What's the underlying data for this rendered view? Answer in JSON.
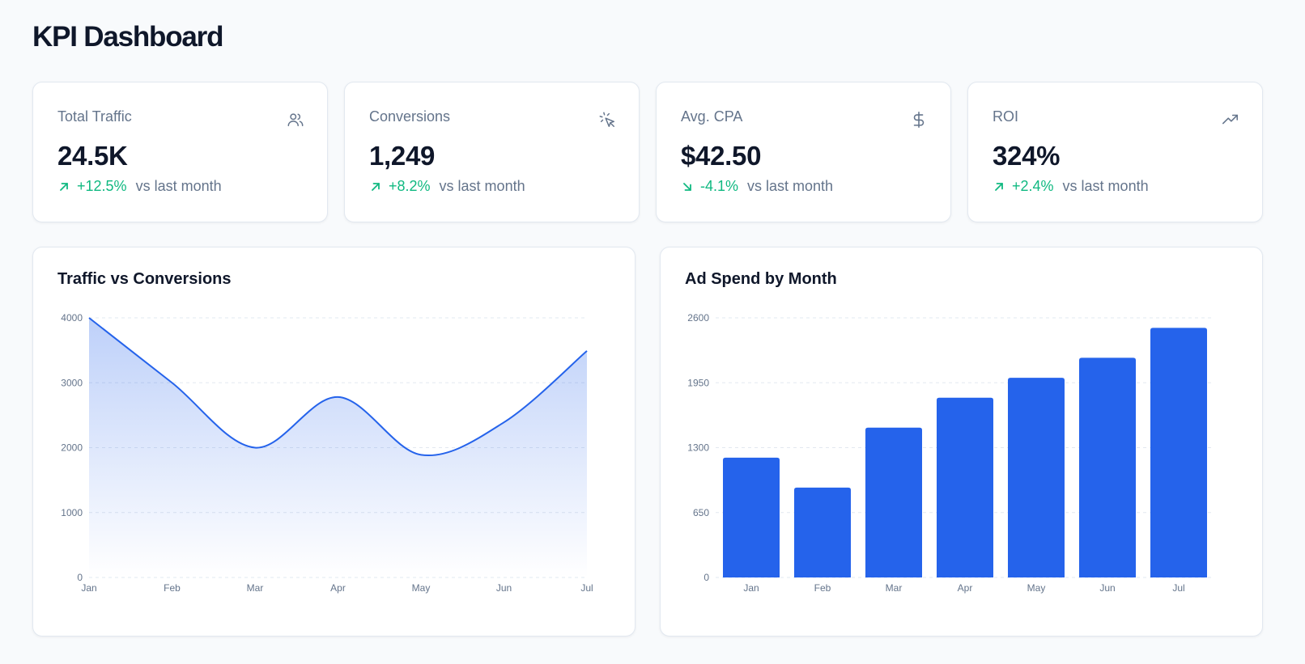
{
  "page": {
    "title": "KPI Dashboard"
  },
  "kpis": [
    {
      "label": "Total Traffic",
      "value": "24.5K",
      "change": "+12.5%",
      "note": "vs last month",
      "icon": "users-icon",
      "direction": "up"
    },
    {
      "label": "Conversions",
      "value": "1,249",
      "change": "+8.2%",
      "note": "vs last month",
      "icon": "cursor-click-icon",
      "direction": "up"
    },
    {
      "label": "Avg. CPA",
      "value": "$42.50",
      "change": "-4.1%",
      "note": "vs last month",
      "icon": "dollar-icon",
      "direction": "down"
    },
    {
      "label": "ROI",
      "value": "324%",
      "change": "+2.4%",
      "note": "vs last month",
      "icon": "trending-up-icon",
      "direction": "up"
    }
  ],
  "colors": {
    "accent": "#2563eb",
    "positive": "#10b981",
    "muted": "#64748b",
    "grid": "#e2e8f0"
  },
  "chart_data": [
    {
      "type": "area",
      "title": "Traffic vs Conversions",
      "x": [
        "Jan",
        "Feb",
        "Mar",
        "Apr",
        "May",
        "Jun",
        "Jul"
      ],
      "y": [
        4000,
        3000,
        2000,
        2780,
        1890,
        2390,
        3490
      ],
      "yticks": [
        0,
        1000,
        2000,
        3000,
        4000
      ],
      "ylim": [
        0,
        4000
      ],
      "grid": true,
      "color": "#2563eb"
    },
    {
      "type": "bar",
      "title": "Ad Spend by Month",
      "categories": [
        "Jan",
        "Feb",
        "Mar",
        "Apr",
        "May",
        "Jun",
        "Jul"
      ],
      "values": [
        1200,
        900,
        1500,
        1800,
        2000,
        2200,
        2500
      ],
      "yticks": [
        0,
        650,
        1300,
        1950,
        2600
      ],
      "ylim": [
        0,
        2600
      ],
      "grid": true,
      "color": "#2563eb"
    }
  ]
}
